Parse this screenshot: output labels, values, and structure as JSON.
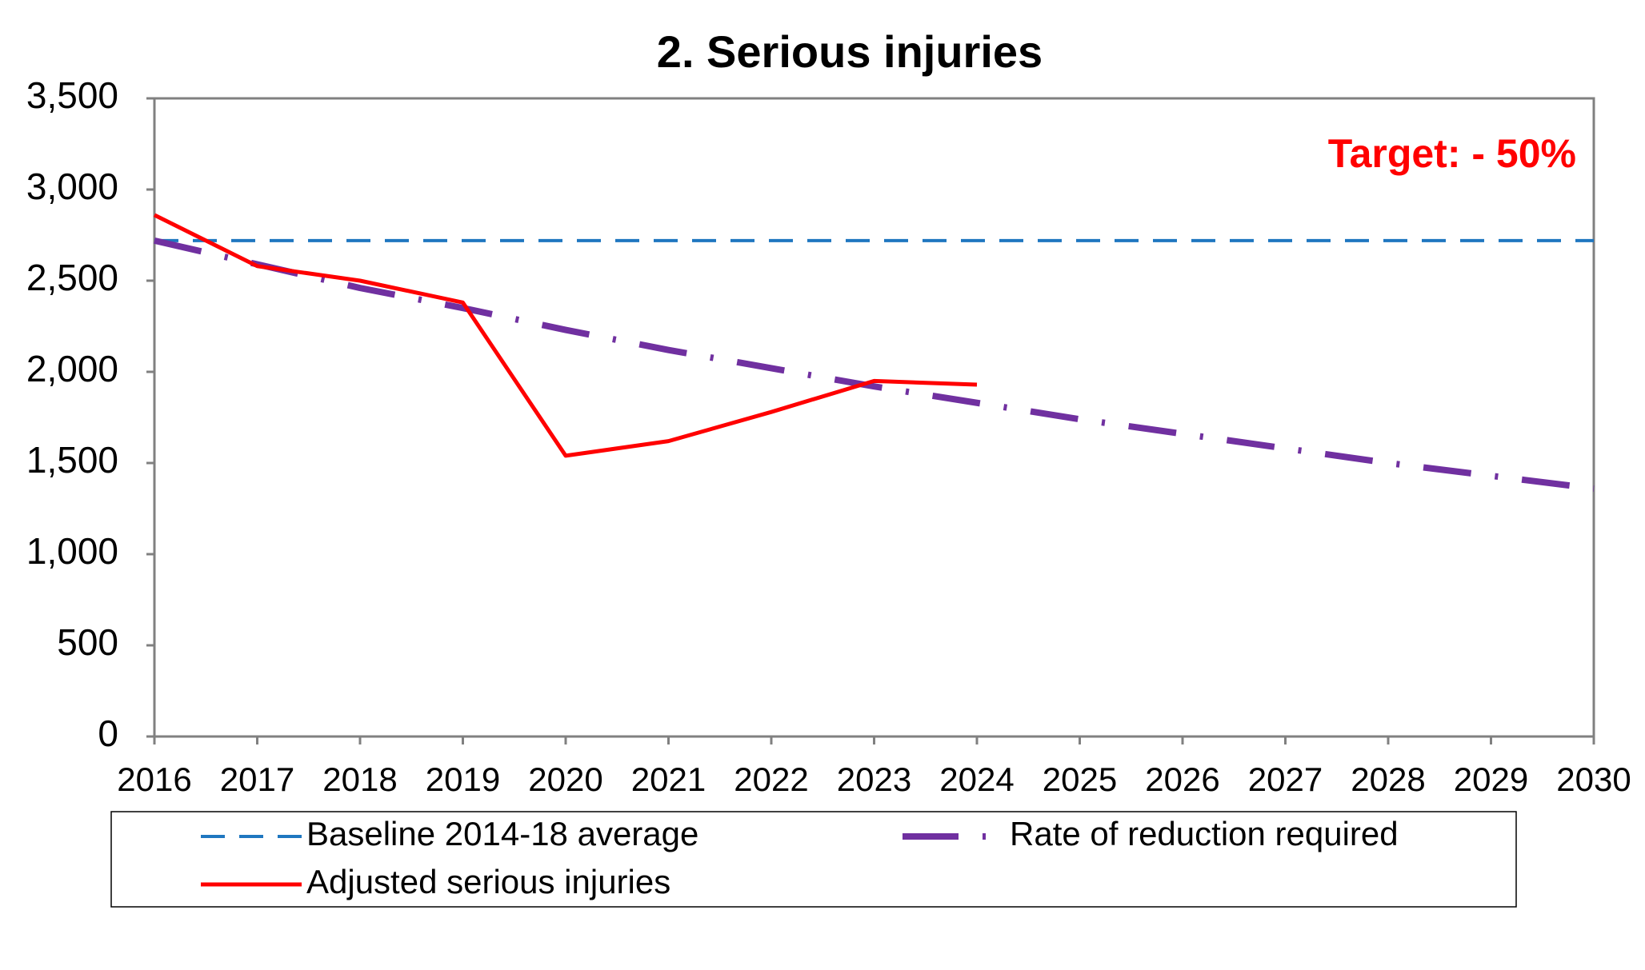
{
  "chart_data": {
    "type": "line",
    "title": "2. Serious injuries",
    "annotation": "Target: - 50%",
    "x": [
      2016,
      2017,
      2018,
      2019,
      2020,
      2021,
      2022,
      2023,
      2024,
      2025,
      2026,
      2027,
      2028,
      2029,
      2030
    ],
    "xlim": [
      2016,
      2030
    ],
    "xticks": [
      2016,
      2017,
      2018,
      2019,
      2020,
      2021,
      2022,
      2023,
      2024,
      2025,
      2026,
      2027,
      2028,
      2029,
      2030
    ],
    "ylim": [
      0,
      3500
    ],
    "yticks": [
      0,
      {
        "value": 500,
        "label": "500"
      },
      {
        "value": 1000,
        "label": "1,000"
      },
      {
        "value": 1500,
        "label": "1,500"
      },
      {
        "value": 2000,
        "label": "2,000"
      },
      {
        "value": 2500,
        "label": "2,500"
      },
      {
        "value": 3000,
        "label": "3,000"
      },
      {
        "value": 3500,
        "label": "3,500"
      }
    ],
    "grid": false,
    "series": [
      {
        "name": "Baseline 2014-18 average",
        "color": "#1f77c0",
        "dash": "dashed",
        "values": [
          2720,
          2720,
          2720,
          2720,
          2720,
          2720,
          2720,
          2720,
          2720,
          2720,
          2720,
          2720,
          2720,
          2720,
          2720
        ]
      },
      {
        "name": "Rate of reduction required",
        "color": "#7030a0",
        "dash": "dash-dot",
        "values": [
          2720,
          2590,
          2460,
          2350,
          2230,
          2120,
          2020,
          1920,
          1830,
          1740,
          1660,
          1580,
          1500,
          1430,
          1360
        ]
      },
      {
        "name": "Adjusted serious injuries",
        "color": "#ff0000",
        "dash": "solid",
        "values": [
          2860,
          2580,
          2500,
          2380,
          1540,
          1620,
          1780,
          1950,
          1930,
          null,
          null,
          null,
          null,
          null,
          null
        ]
      }
    ]
  }
}
